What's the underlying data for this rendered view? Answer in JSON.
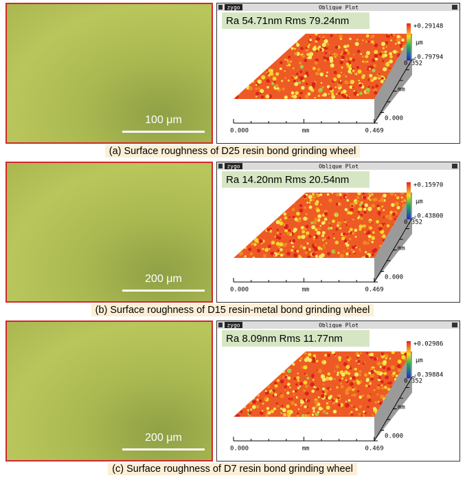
{
  "panels": [
    {
      "scale_bar": "100 μm",
      "plot": {
        "brand": "zygo",
        "title": "Oblique Plot",
        "roughness": "Ra 54.71nm Rms 79.24nm",
        "colorbar_max": "+0.29148",
        "colorbar_unit": "μm",
        "colorbar_min": "-0.79794",
        "y_max": "0.352",
        "y_unit": "mm",
        "y_min": "0.000",
        "x_min": "0.000",
        "x_unit": "mm",
        "x_max": "0.469"
      },
      "caption": "(a) Surface roughness of D25  resin bond grinding wheel"
    },
    {
      "scale_bar": "200 μm",
      "plot": {
        "brand": "zygo",
        "title": "Oblique Plot",
        "roughness": "Ra 14.20nm Rms 20.54nm",
        "colorbar_max": "+0.15970",
        "colorbar_unit": "μm",
        "colorbar_min": "-0.43800",
        "y_max": "0.352",
        "y_unit": "mm",
        "y_min": "0.000",
        "x_min": "0.000",
        "x_unit": "mm",
        "x_max": "0.469"
      },
      "caption": "(b) Surface roughness of D15 resin-metal bond grinding wheel"
    },
    {
      "scale_bar": "200 μm",
      "plot": {
        "brand": "zygo",
        "title": "Oblique Plot",
        "roughness": "Ra 8.09nm Rms 11.77nm",
        "colorbar_max": "+0.02986",
        "colorbar_unit": "μm",
        "colorbar_min": "-0.39884",
        "y_max": "0.352",
        "y_unit": "mm",
        "y_min": "0.000",
        "x_min": "0.000",
        "x_unit": "mm",
        "x_max": "0.469"
      },
      "caption": "(c) Surface roughness of D7 resin bond grinding wheel"
    }
  ]
}
